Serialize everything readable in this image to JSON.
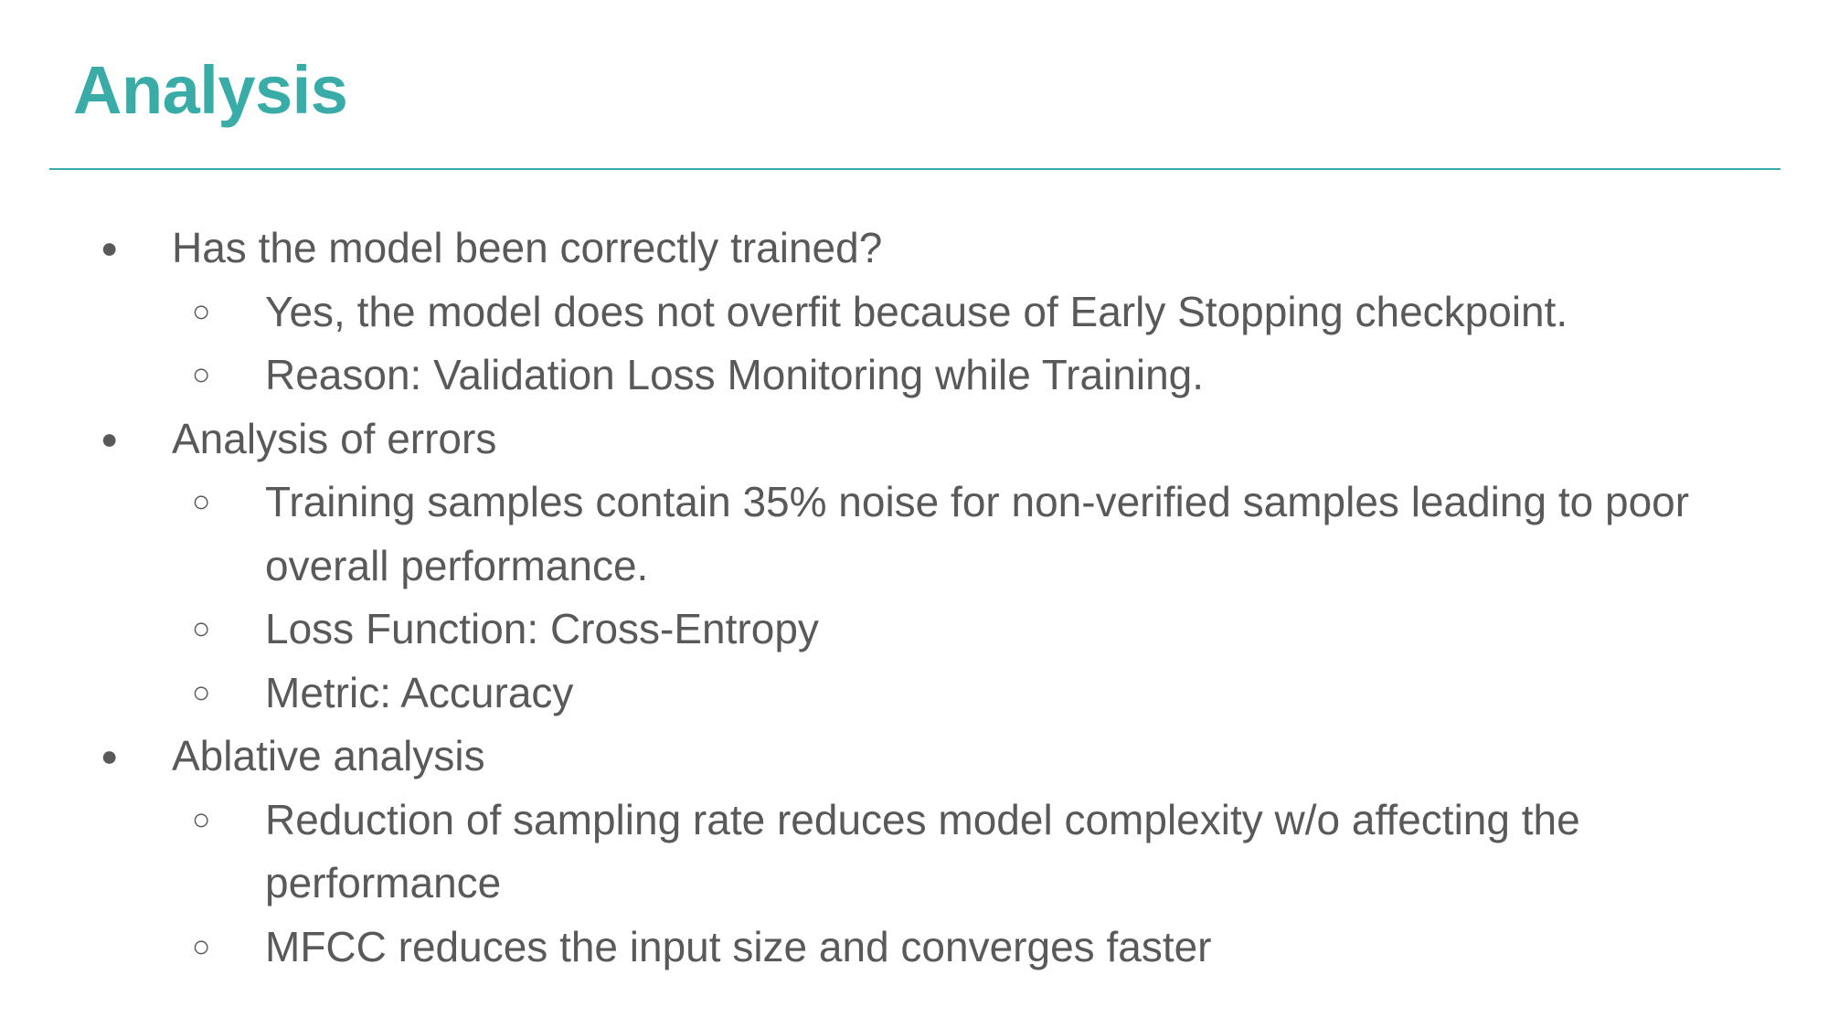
{
  "slide": {
    "title": "Analysis",
    "accent_color": "#3aaca8",
    "text_color": "#595959",
    "bullets": {
      "level1_glyph": "●",
      "level2_glyph": "○"
    },
    "sections": [
      {
        "heading": "Has the model been correctly trained?",
        "items": [
          "Yes, the model does not overfit because of Early Stopping checkpoint.",
          "Reason: Validation Loss Monitoring while Training."
        ]
      },
      {
        "heading": "Analysis of errors",
        "items": [
          "Training samples contain 35% noise for non-verified samples leading to poor overall performance.",
          "Loss Function: Cross-Entropy",
          "Metric: Accuracy"
        ]
      },
      {
        "heading": "Ablative analysis",
        "items": [
          "Reduction of sampling rate reduces model complexity w/o affecting the performance",
          "MFCC reduces the input size and converges faster"
        ]
      }
    ]
  }
}
